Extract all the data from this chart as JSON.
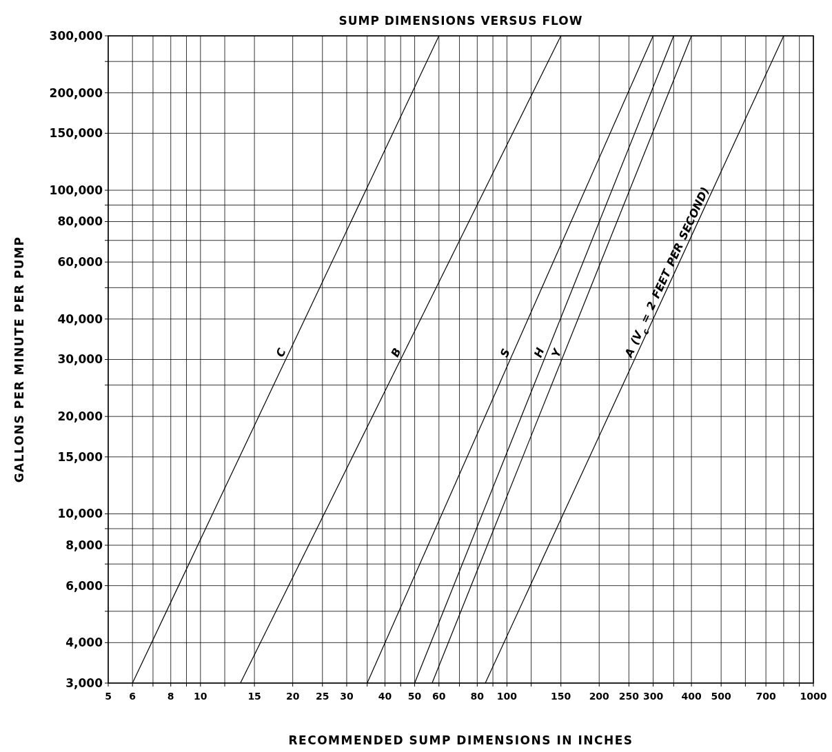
{
  "chart_data": {
    "type": "line",
    "title": "SUMP DIMENSIONS VERSUS FLOW",
    "xlabel": "RECOMMENDED SUMP DIMENSIONS IN INCHES",
    "ylabel": "GALLONS PER MINUTE PER PUMP",
    "log": "xy",
    "grid": true,
    "line_style": "solid",
    "xlim": [
      5,
      1000
    ],
    "ylim": [
      3000,
      300000
    ],
    "xticks": [
      5,
      6,
      {
        "value": 7,
        "label": null
      },
      8,
      {
        "value": 9,
        "label": null
      },
      10,
      {
        "value": 12,
        "label": null
      },
      15,
      20,
      25,
      30,
      {
        "value": 35,
        "label": null
      },
      40,
      {
        "value": 45,
        "label": null
      },
      50,
      60,
      {
        "value": 70,
        "label": null
      },
      80,
      {
        "value": 90,
        "label": null
      },
      100,
      {
        "value": 120,
        "label": null
      },
      150,
      200,
      250,
      300,
      {
        "value": 350,
        "label": null
      },
      400,
      500,
      {
        "value": 600,
        "label": null
      },
      700,
      {
        "value": 800,
        "label": null
      },
      {
        "value": 900,
        "label": null
      },
      1000
    ],
    "yticks": [
      {
        "value": 3000,
        "label": "3,000"
      },
      {
        "value": 4000,
        "label": "4,000"
      },
      {
        "value": 5000,
        "label": null
      },
      {
        "value": 6000,
        "label": "6,000"
      },
      {
        "value": 7000,
        "label": null
      },
      {
        "value": 8000,
        "label": "8,000"
      },
      {
        "value": 9000,
        "label": null
      },
      {
        "value": 10000,
        "label": "10,000"
      },
      {
        "value": 15000,
        "label": "15,000"
      },
      {
        "value": 20000,
        "label": "20,000"
      },
      {
        "value": 25000,
        "label": null
      },
      {
        "value": 30000,
        "label": "30,000"
      },
      {
        "value": 40000,
        "label": "40,000"
      },
      {
        "value": 50000,
        "label": null
      },
      {
        "value": 60000,
        "label": "60,000"
      },
      {
        "value": 70000,
        "label": null
      },
      {
        "value": 80000,
        "label": "80,000"
      },
      {
        "value": 90000,
        "label": null
      },
      {
        "value": 100000,
        "label": "100,000"
      },
      {
        "value": 150000,
        "label": "150,000"
      },
      {
        "value": 200000,
        "label": "200,000"
      },
      {
        "value": 250000,
        "label": null
      },
      {
        "value": 300000,
        "label": "300,000"
      }
    ],
    "series": [
      {
        "name": "C",
        "color": "#000000",
        "x": [
          6,
          60
        ],
        "values": [
          3000,
          300000
        ]
      },
      {
        "name": "B",
        "color": "#000000",
        "x": [
          13.5,
          150
        ],
        "values": [
          3000,
          300000
        ]
      },
      {
        "name": "S",
        "color": "#000000",
        "x": [
          35,
          300
        ],
        "values": [
          3000,
          300000
        ]
      },
      {
        "name": "H",
        "color": "#000000",
        "x": [
          50,
          350
        ],
        "values": [
          3000,
          300000
        ]
      },
      {
        "name": "Y",
        "color": "#000000",
        "x": [
          57,
          400
        ],
        "values": [
          3000,
          300000
        ]
      },
      {
        "name": "A (V$_{c}$ = 2 FEET PER SECOND)",
        "color": "#000000",
        "x": [
          85,
          800
        ],
        "values": [
          3000,
          300000
        ]
      }
    ]
  }
}
